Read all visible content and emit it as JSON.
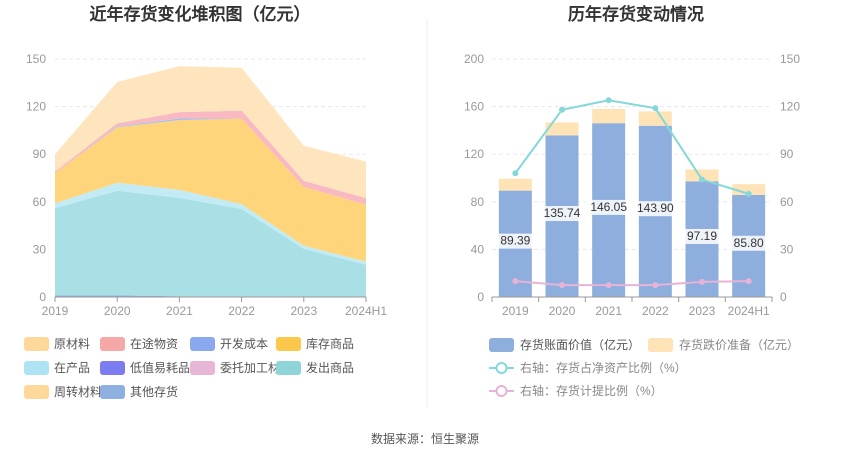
{
  "left_chart": {
    "title": "近年存货变化堆积图（亿元）",
    "legend": [
      {
        "label": "原材料",
        "color": "#fdd89a"
      },
      {
        "label": "在途物资",
        "color": "#f5a9a7"
      },
      {
        "label": "开发成本",
        "color": "#8aa8f0"
      },
      {
        "label": "库存商品",
        "color": "#fcc84a"
      },
      {
        "label": "在产品",
        "color": "#aee3f3"
      },
      {
        "label": "低值易耗品",
        "color": "#7b7cf0"
      },
      {
        "label": "委托加工材料",
        "color": "#e8b7d8"
      },
      {
        "label": "发出商品",
        "color": "#8fd4d8"
      },
      {
        "label": "周转材料",
        "color": "#fdd89a"
      },
      {
        "label": "其他存货",
        "color": "#8eb0e0"
      }
    ]
  },
  "right_chart": {
    "title": "历年存货变动情况",
    "legend": {
      "bar1": "存货账面价值（亿元）",
      "bar2": "存货跌价准备（亿元）",
      "line1": "右轴：存货占净资产比例（%）",
      "line2": "右轴：存货计提比例（%）"
    }
  },
  "source_text": "数据来源：恒生聚源",
  "chart_data": [
    {
      "type": "area",
      "title": "近年存货变化堆积图（亿元）",
      "categories": [
        "2019",
        "2020",
        "2021",
        "2022",
        "2023",
        "2024H1"
      ],
      "ylim": [
        0,
        150
      ],
      "yticks": [
        0,
        30,
        60,
        90,
        120,
        150
      ],
      "stack_order_bottom_to_top": [
        "其他存货",
        "发出商品",
        "在产品",
        "库存商品",
        "开发成本",
        "在途物资",
        "原材料"
      ],
      "series": [
        {
          "name": "其他存货",
          "color": "#8eb0e0",
          "values": [
            1,
            1,
            0.5,
            0.5,
            0.3,
            0.3
          ]
        },
        {
          "name": "发出商品",
          "color": "#a8e0e5",
          "values": [
            55,
            66,
            62,
            55,
            30,
            20
          ]
        },
        {
          "name": "在产品",
          "color": "#c2ebf6",
          "values": [
            3,
            5,
            5,
            3,
            2,
            2
          ]
        },
        {
          "name": "库存商品",
          "color": "#fed57a",
          "values": [
            19,
            35,
            44,
            54,
            37,
            36
          ]
        },
        {
          "name": "开发成本",
          "color": "#a9c2f2",
          "values": [
            0,
            0.5,
            1,
            0,
            0,
            0
          ]
        },
        {
          "name": "在途物资",
          "color": "#f9b9c2",
          "values": [
            1,
            2,
            4,
            5,
            4,
            4
          ]
        },
        {
          "name": "原材料",
          "color": "#fee5bd",
          "values": [
            11,
            26,
            29,
            27,
            22,
            23
          ]
        }
      ]
    },
    {
      "type": "bar",
      "title": "历年存货变动情况",
      "categories": [
        "2019",
        "2020",
        "2021",
        "2022",
        "2023",
        "2024H1"
      ],
      "ylim": [
        0,
        200
      ],
      "yticks": [
        0,
        40,
        80,
        120,
        160,
        200
      ],
      "y2lim": [
        0,
        150
      ],
      "y2ticks": [
        0,
        30,
        60,
        90,
        120,
        150
      ],
      "series": [
        {
          "name": "存货账面价值（亿元）",
          "color": "#8eaedd",
          "values": [
            89.39,
            135.74,
            146.05,
            143.9,
            97.19,
            85.8
          ],
          "labels": [
            "89.39",
            "135.74",
            "146.05",
            "143.90",
            "97.19",
            "85.80"
          ]
        },
        {
          "name": "存货跌价准备（亿元）",
          "color": "#fde3b5",
          "values": [
            10,
            11,
            12,
            12,
            10,
            9
          ]
        },
        {
          "name": "右轴：存货占净资产比例（%）",
          "axis": "right",
          "color": "#84d8d8",
          "values": [
            78,
            118,
            124,
            119,
            74,
            65
          ]
        },
        {
          "name": "右轴：存货计提比例（%）",
          "axis": "right",
          "color": "#e7b3d6",
          "values": [
            10,
            7.5,
            7.5,
            7.5,
            9.5,
            10
          ]
        }
      ]
    }
  ]
}
